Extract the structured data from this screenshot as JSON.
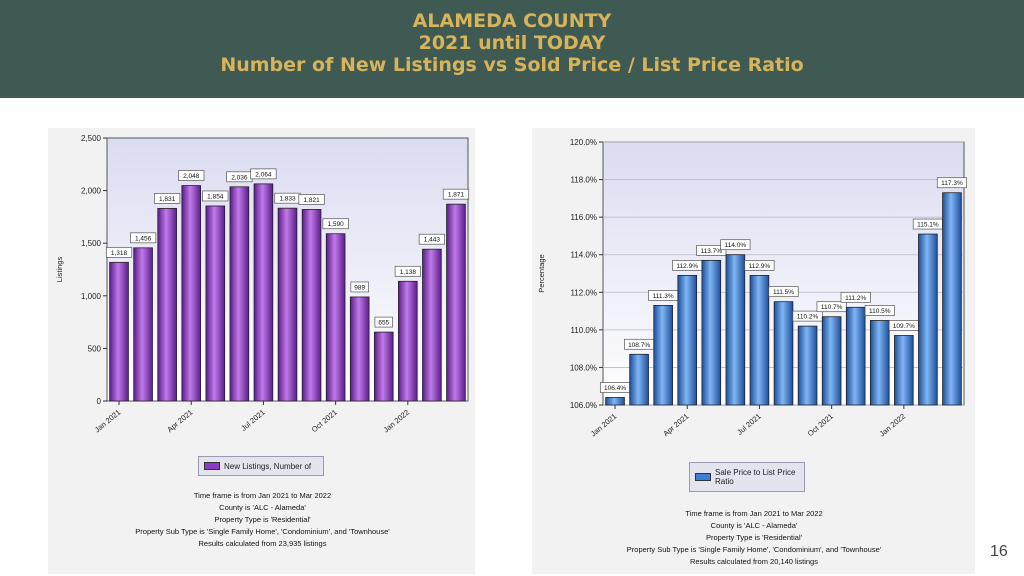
{
  "header": {
    "line1": "ALAMEDA COUNTY",
    "line2": "2021 until TODAY",
    "line3": "Number of New Listings vs Sold Price / List Price Ratio"
  },
  "page_number": "16",
  "colors": {
    "header_bg": "#3f5a52",
    "header_text": "#d7b45c",
    "purple": "#8a3cc6",
    "blue": "#3d7fd6"
  },
  "chart_data": [
    {
      "type": "bar",
      "ylabel": "Listings",
      "ylim": [
        0,
        2500
      ],
      "yticks": [
        "0",
        "500",
        "1,000",
        "1,500",
        "2,000",
        "2,500"
      ],
      "ytick_values": [
        0,
        500,
        1000,
        1500,
        2000,
        2500
      ],
      "xticks": [
        "Jan 2021",
        "Apr 2021",
        "Jul 2021",
        "Oct 2021",
        "Jan 2022"
      ],
      "xtick_indices": [
        0,
        3,
        6,
        9,
        12
      ],
      "values": [
        1318,
        1456,
        1831,
        2048,
        1854,
        2036,
        2064,
        1833,
        1821,
        1590,
        989,
        655,
        1138,
        1443,
        1871
      ],
      "value_labels": [
        "1,318",
        "1,456",
        "1,831",
        "2,048",
        "1,854",
        "2,036",
        "2,064",
        "1,833",
        "1,821",
        "1,590",
        "989",
        "655",
        "1,138",
        "1,443",
        "1,871"
      ],
      "grid": false,
      "legend": "New Listings, Number of",
      "notes": [
        "Time frame is from Jan 2021 to Mar 2022",
        "County is 'ALC - Alameda'",
        "Property Type is 'Residential'",
        "Property Sub Type is 'Single Family Home', 'Condominium', and 'Townhouse'",
        "Results calculated from 23,935 listings"
      ]
    },
    {
      "type": "bar",
      "ylabel": "Percentage",
      "ylim": [
        106,
        120
      ],
      "yticks": [
        "106.0%",
        "108.0%",
        "110.0%",
        "112.0%",
        "114.0%",
        "116.0%",
        "118.0%",
        "120.0%"
      ],
      "ytick_values": [
        106,
        108,
        110,
        112,
        114,
        116,
        118,
        120
      ],
      "xticks": [
        "Jan 2021",
        "Apr 2021",
        "Jul 2021",
        "Oct 2021",
        "Jan 2022"
      ],
      "xtick_indices": [
        0,
        3,
        6,
        9,
        12
      ],
      "values": [
        106.4,
        108.7,
        111.3,
        112.9,
        113.7,
        114.0,
        112.9,
        111.5,
        110.2,
        110.7,
        111.2,
        110.5,
        109.7,
        115.1,
        117.3
      ],
      "value_labels": [
        "106.4%",
        "108.7%",
        "111.3%",
        "112.9%",
        "113.7%",
        "114.0%",
        "112.9%",
        "111.5%",
        "110.2%",
        "110.7%",
        "111.2%",
        "110.5%",
        "109.7%",
        "115.1%",
        "117.3%"
      ],
      "grid": true,
      "legend": "Sale Price to List Price Ratio",
      "notes": [
        "Time frame is from Jan 2021 to Mar 2022",
        "County is 'ALC - Alameda'",
        "Property Type is 'Residential'",
        "Property Sub Type is 'Single Family Home', 'Condominium', and 'Townhouse'",
        "Results calculated from 20,140 listings"
      ]
    }
  ]
}
